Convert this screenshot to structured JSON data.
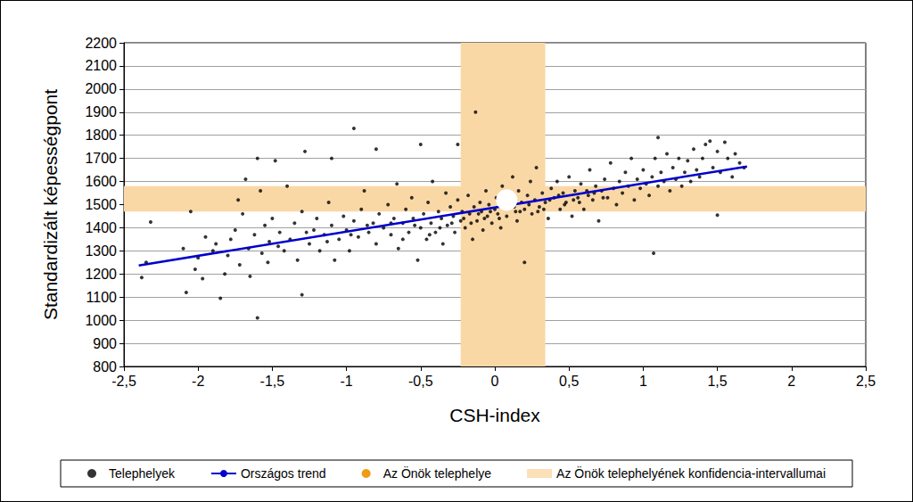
{
  "chart_data": {
    "type": "scatter",
    "x_label": "CSH-index",
    "y_label": "Standardizált képességpont",
    "xlim": [
      -2.5,
      2.5
    ],
    "ylim": [
      800,
      2200
    ],
    "xticks": [
      {
        "value": -2.5,
        "label": "-2,5"
      },
      -2,
      {
        "value": -1.5,
        "label": "-1,5"
      },
      -1,
      {
        "value": -0.5,
        "label": "-0,5"
      },
      0,
      {
        "value": 0.5,
        "label": "0,5"
      },
      1,
      {
        "value": 1.5,
        "label": "1,5"
      },
      2,
      {
        "value": 2.5,
        "label": "2,5"
      }
    ],
    "yticks": [
      800,
      900,
      1000,
      1100,
      1200,
      1300,
      1400,
      1500,
      1600,
      1700,
      1800,
      1900,
      2000,
      2100,
      2200
    ],
    "grid": true,
    "legend": "bottom",
    "series": [
      {
        "name": "Telephelyek",
        "type": "scatter",
        "color": "#000000",
        "marker": "circle",
        "x": [
          -2.38,
          -2.35,
          -2.32,
          -2.1,
          -2.08,
          -2.05,
          -2.02,
          -2.0,
          -1.97,
          -1.95,
          -1.9,
          -1.88,
          -1.85,
          -1.82,
          -1.8,
          -1.78,
          -1.75,
          -1.73,
          -1.72,
          -1.7,
          -1.68,
          -1.66,
          -1.65,
          -1.62,
          -1.6,
          -1.6,
          -1.58,
          -1.57,
          -1.55,
          -1.53,
          -1.52,
          -1.5,
          -1.48,
          -1.46,
          -1.45,
          -1.42,
          -1.4,
          -1.38,
          -1.35,
          -1.33,
          -1.3,
          -1.3,
          -1.28,
          -1.25,
          -1.22,
          -1.2,
          -1.18,
          -1.15,
          -1.12,
          -1.1,
          -1.1,
          -1.08,
          -1.05,
          -1.02,
          -1.0,
          -0.98,
          -0.95,
          -0.95,
          -0.92,
          -0.9,
          -0.88,
          -0.85,
          -0.82,
          -0.8,
          -0.8,
          -0.78,
          -0.75,
          -0.72,
          -0.7,
          -0.68,
          -0.66,
          -0.65,
          -0.62,
          -0.6,
          -0.58,
          -0.56,
          -0.55,
          -0.52,
          -0.5,
          -0.5,
          -0.48,
          -0.46,
          -0.45,
          -0.43,
          -0.42,
          -0.4,
          -0.38,
          -0.36,
          -0.35,
          -0.33,
          -0.32,
          -0.3,
          -0.28,
          -0.27,
          -0.25,
          -0.25,
          -0.23,
          -0.22,
          -0.2,
          -0.18,
          -0.17,
          -0.15,
          -0.14,
          -0.13,
          -0.12,
          -0.1,
          -0.09,
          -0.08,
          -0.06,
          -0.05,
          -0.04,
          -0.02,
          0.0,
          0.01,
          0.02,
          0.04,
          0.05,
          0.06,
          0.08,
          0.1,
          0.11,
          0.12,
          0.14,
          0.15,
          0.16,
          0.18,
          0.2,
          0.2,
          0.22,
          0.24,
          0.25,
          0.27,
          0.28,
          0.3,
          0.32,
          0.34,
          0.36,
          0.38,
          0.4,
          0.42,
          0.44,
          0.46,
          0.48,
          0.5,
          0.52,
          0.54,
          0.56,
          0.58,
          0.6,
          0.62,
          0.64,
          0.66,
          0.68,
          0.7,
          0.72,
          0.74,
          0.76,
          0.78,
          0.8,
          0.82,
          0.84,
          0.86,
          0.88,
          0.9,
          0.92,
          0.94,
          0.96,
          0.98,
          1.0,
          1.02,
          1.04,
          1.06,
          1.07,
          1.08,
          1.1,
          1.1,
          1.12,
          1.14,
          1.16,
          1.18,
          1.2,
          1.22,
          1.24,
          1.26,
          1.28,
          1.3,
          1.32,
          1.34,
          1.36,
          1.38,
          1.4,
          1.42,
          1.45,
          1.47,
          1.5,
          1.5,
          1.52,
          1.55,
          1.57,
          1.6,
          1.62,
          1.65,
          1.68,
          -0.62,
          -0.54,
          -0.44,
          -0.37,
          -0.29,
          -0.21,
          -0.16,
          -0.11,
          -0.07,
          -0.03,
          0.03,
          0.07,
          0.13,
          0.17,
          0.23,
          0.29,
          0.33,
          0.37,
          0.43,
          0.47,
          0.53,
          0.57,
          0.63,
          0.67,
          0.73,
          -0.7,
          -0.86,
          -0.97,
          -1.13,
          -1.27
        ],
        "values": [
          1185,
          1250,
          1425,
          1310,
          1120,
          1470,
          1220,
          1270,
          1180,
          1360,
          1300,
          1330,
          1095,
          1200,
          1280,
          1350,
          1390,
          1520,
          1240,
          1460,
          1610,
          1310,
          1190,
          1370,
          1010,
          1700,
          1560,
          1290,
          1410,
          1250,
          1340,
          1440,
          1690,
          1320,
          1380,
          1300,
          1580,
          1350,
          1420,
          1260,
          1110,
          1470,
          1730,
          1330,
          1390,
          1440,
          1300,
          1370,
          1510,
          1700,
          1410,
          1260,
          1350,
          1450,
          1390,
          1300,
          1830,
          1430,
          1360,
          1480,
          1560,
          1380,
          1420,
          1740,
          1330,
          1460,
          1400,
          1500,
          1370,
          1440,
          1590,
          1310,
          1420,
          1480,
          1380,
          1530,
          1440,
          1260,
          1760,
          1400,
          1460,
          1350,
          1510,
          1420,
          1600,
          1380,
          1470,
          1440,
          1330,
          1550,
          1410,
          1490,
          1450,
          1380,
          1760,
          1520,
          1430,
          1470,
          1400,
          1540,
          1460,
          1350,
          1490,
          1900,
          1430,
          1510,
          1470,
          1390,
          1560,
          1450,
          1500,
          1420,
          1480,
          1530,
          1460,
          1400,
          1580,
          1490,
          1450,
          1540,
          1500,
          1620,
          1470,
          1430,
          1560,
          1510,
          1250,
          1480,
          1540,
          1600,
          1460,
          1520,
          1660,
          1490,
          1550,
          1510,
          1440,
          1570,
          1530,
          1600,
          1480,
          1550,
          1510,
          1620,
          1450,
          1560,
          1530,
          1590,
          1480,
          1560,
          1650,
          1520,
          1580,
          1430,
          1560,
          1610,
          1530,
          1680,
          1570,
          1500,
          1600,
          1550,
          1640,
          1580,
          1700,
          1520,
          1610,
          1570,
          1650,
          1590,
          1540,
          1620,
          1290,
          1700,
          1790,
          1580,
          1640,
          1600,
          1720,
          1560,
          1660,
          1610,
          1700,
          1580,
          1640,
          1690,
          1600,
          1740,
          1650,
          1620,
          1700,
          1760,
          1775,
          1660,
          1455,
          1730,
          1640,
          1770,
          1700,
          1620,
          1720,
          1680,
          1660,
          1350,
          1410,
          1370,
          1400,
          1420,
          1440,
          1420,
          1460,
          1440,
          1470,
          1440,
          1510,
          1490,
          1470,
          1500,
          1470,
          1480,
          1520,
          1540,
          1500,
          1520,
          1510,
          1540,
          1550,
          1530,
          1420,
          1410,
          1370,
          1340,
          1380
        ]
      },
      {
        "name": "Országos trend",
        "type": "line",
        "color": "#0000CC",
        "line_style": "solid",
        "x": [
          -2.4,
          1.7
        ],
        "values": [
          1237,
          1665
        ]
      },
      {
        "name": "Az Önök telephelye",
        "type": "scatter",
        "color": "#F29A12",
        "marker": "ring",
        "x": [
          0.08
        ],
        "values": [
          1520
        ]
      },
      {
        "name": "Az Önök telephelyének konfidencia-intervallumai",
        "type": "band",
        "color": "#FAD8A6",
        "x_interval": [
          -0.23,
          0.34
        ],
        "y_interval": [
          1470,
          1580
        ]
      }
    ]
  }
}
